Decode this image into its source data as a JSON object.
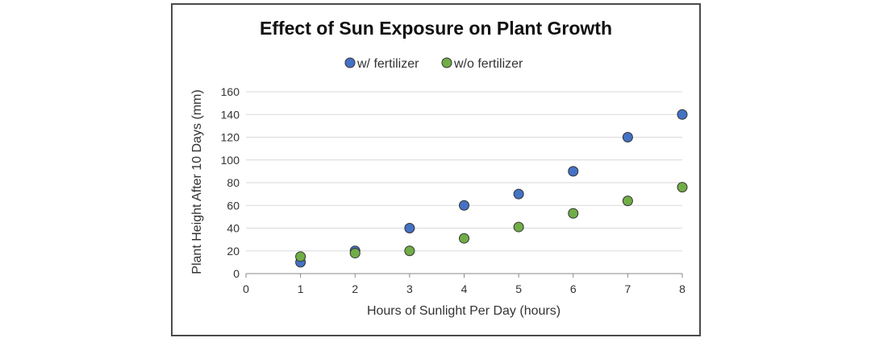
{
  "chart_data": {
    "type": "scatter",
    "title": "Effect of Sun Exposure on Plant Growth",
    "xlabel": "Hours of Sunlight Per Day (hours)",
    "ylabel": "Plant Height After 10 Days (mm)",
    "xlim": [
      0,
      8
    ],
    "ylim": [
      0,
      160
    ],
    "xticks": [
      0,
      1,
      2,
      3,
      4,
      5,
      6,
      7,
      8
    ],
    "yticks": [
      0,
      20,
      40,
      60,
      80,
      100,
      120,
      140,
      160
    ],
    "grid": "horizontal",
    "legend_position": "top-center",
    "series": [
      {
        "name": "w/ fertilizer",
        "color": "#4472c4",
        "x": [
          1,
          2,
          3,
          4,
          5,
          6,
          7,
          8
        ],
        "y": [
          10,
          20,
          40,
          60,
          70,
          90,
          120,
          140
        ]
      },
      {
        "name": "w/o fertilizer",
        "color": "#70ad47",
        "x": [
          1,
          2,
          3,
          4,
          5,
          6,
          7,
          8
        ],
        "y": [
          15,
          18,
          20,
          31,
          41,
          53,
          64,
          76
        ]
      }
    ]
  }
}
